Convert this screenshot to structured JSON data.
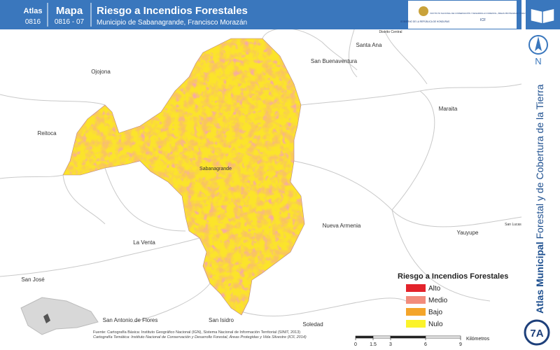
{
  "header": {
    "atlas_label": "Atlas",
    "atlas_code": "0816",
    "map_label": "Mapa",
    "map_code": "0816 - 07",
    "title": "Riesgo a Incendios Forestales",
    "subtitle": "Municipio de Sabanagrande, Francisco Morazán"
  },
  "logos": {
    "government": "GOBIERNO DE LA REPÚBLICA DE HONDURAS",
    "institute": "INSTITUTO NACIONAL DE CONSERVACIÓN Y DESARROLLO FORESTAL, ÁREAS PROTEGIDAS Y VIDA SILVESTRE",
    "institute_short": "ICF"
  },
  "sidebar": {
    "north": "N",
    "series_bold": "Atlas Municipal",
    "series_rest": " Forestal y de Cobertura de la Tierra",
    "sheet": "7A"
  },
  "places": [
    "Ojojona",
    "Reitoca",
    "Santa Ana",
    "San Buenaventura",
    "Distrito Central",
    "Maraita",
    "Sabanagrande",
    "Nueva Armenia",
    "La Venta",
    "Yauyupe",
    "San José",
    "San Antonio de Flores",
    "San Isidro",
    "Soledad",
    "San Lucas"
  ],
  "legend": {
    "title": "Riesgo a Incendios Forestales",
    "items": [
      {
        "label": "Alto",
        "color": "#e3232b"
      },
      {
        "label": "Medio",
        "color": "#f28c7c"
      },
      {
        "label": "Bajo",
        "color": "#f4a52a"
      },
      {
        "label": "Nulo",
        "color": "#fbf32b"
      }
    ]
  },
  "scale": {
    "ticks": [
      0,
      1.5,
      3,
      6,
      9
    ],
    "unit": "Kilómetros"
  },
  "sources": {
    "line1": "Fuente: Cartografía Básica: Instituto Geográfico Nacional (IGN), Sistema Nacional de Información Territorial (SINIT, 2013)",
    "line2": "Cartografía Temática: Instituto Nacional de Conservación y Desarrollo Forestal, Áreas Protegidas y Vida Silvestre (ICF, 2014)"
  }
}
